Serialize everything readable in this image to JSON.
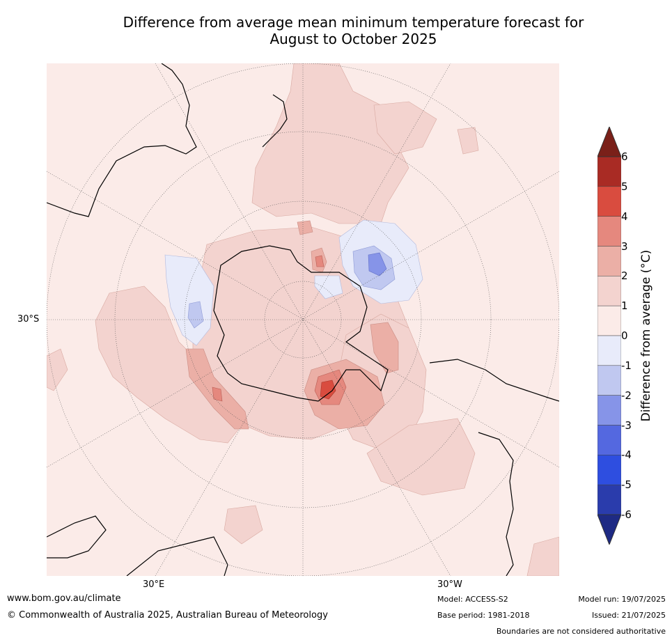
{
  "title": {
    "line1": "Difference from average mean minimum temperature forecast for",
    "line2": "August to October 2025"
  },
  "map": {
    "projection": "south polar stereographic",
    "lat_label": "30°S",
    "lon_labels": [
      "30°E",
      "30°W"
    ],
    "anomaly_colors": {
      "0_to_1": "#fbebe8",
      "1_to_2": "#f3d3cf",
      "2_to_3": "#ebafa6",
      "3_to_4": "#e5887e",
      "4_to_5": "#d94c3f",
      "neg_0_to_1": "#e8ebfa",
      "neg_1_to_2": "#c0c8f0",
      "neg_2_to_3": "#8694e8"
    }
  },
  "colorbar": {
    "label": "Difference from average (°C)",
    "ticks": [
      "6",
      "5",
      "4",
      "3",
      "2",
      "1",
      "0",
      "-1",
      "-2",
      "-3",
      "-4",
      "-5",
      "-6"
    ],
    "colors": [
      "#a92b24",
      "#d94c3f",
      "#e5887e",
      "#ebafa6",
      "#f3d3cf",
      "#fbebe8",
      "#e8ebfa",
      "#c0c8f0",
      "#8694e8",
      "#5468e0",
      "#2e4ee0",
      "#2a3cac"
    ],
    "over_color": "#7a2019",
    "under_color": "#1e2a84"
  },
  "footer": {
    "website": "www.bom.gov.au/climate",
    "copyright": "© Commonwealth of Australia 2025, Australian Bureau of Meteorology",
    "model": "Model: ACCESS-S2",
    "base_period": "Base period: 1981-2018",
    "model_run": "Model run: 19/07/2025",
    "issued": "Issued: 21/07/2025",
    "disclaimer": "Boundaries are not considered authoritative"
  }
}
